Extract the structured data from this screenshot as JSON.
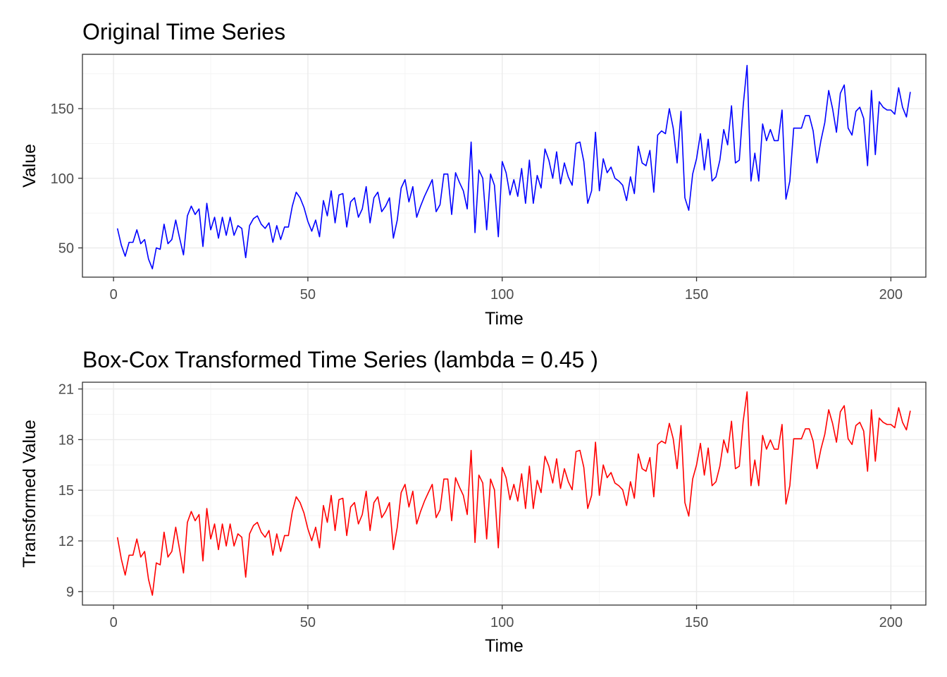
{
  "chart_data": [
    {
      "type": "line",
      "title": "Original Time Series",
      "xlabel": "Time",
      "ylabel": "Value",
      "xlim": [
        -8,
        209
      ],
      "ylim": [
        29,
        189
      ],
      "x_ticks": [
        0,
        50,
        100,
        150,
        200
      ],
      "y_ticks": [
        50,
        100,
        150
      ],
      "grid": true,
      "legend": "none",
      "color": "#0000ff",
      "series": [
        {
          "values": [
            64,
            52,
            44,
            54,
            54,
            63,
            53,
            56,
            42,
            35,
            50,
            49,
            67,
            53,
            56,
            70,
            57,
            45,
            73,
            80,
            74,
            78,
            51,
            82,
            63,
            72,
            57,
            72,
            59,
            72,
            59,
            66,
            64,
            43,
            66,
            71,
            73,
            67,
            64,
            68,
            54,
            66,
            56,
            65,
            65,
            80,
            90,
            86,
            79,
            69,
            62,
            70,
            58,
            84,
            73,
            91,
            68,
            88,
            89,
            65,
            83,
            86,
            72,
            78,
            94,
            68,
            86,
            90,
            76,
            80,
            86,
            57,
            70,
            93,
            99,
            83,
            94,
            72,
            80,
            87,
            93,
            99,
            76,
            81,
            103,
            103,
            74,
            104,
            97,
            91,
            78,
            126,
            61,
            106,
            100,
            63,
            103,
            95,
            58,
            112,
            104,
            88,
            99,
            87,
            107,
            82,
            113,
            82,
            102,
            93,
            121,
            113,
            100,
            119,
            96,
            111,
            101,
            95,
            125,
            126,
            112,
            82,
            91,
            133,
            91,
            114,
            104,
            108,
            100,
            98,
            95,
            84,
            101,
            89,
            123,
            111,
            109,
            120,
            90,
            131,
            134,
            132,
            150,
            136,
            111,
            148,
            86,
            77,
            103,
            114,
            132,
            106,
            128,
            98,
            101,
            113,
            135,
            124,
            152,
            111,
            113,
            152,
            181,
            98,
            118,
            98,
            139,
            127,
            135,
            127,
            127,
            149,
            85,
            98,
            136,
            136,
            136,
            145,
            145,
            134,
            111,
            127,
            140,
            163,
            150,
            133,
            161,
            167,
            136,
            131,
            148,
            151,
            143,
            109,
            163,
            117,
            155,
            151,
            149,
            149,
            146,
            165,
            151,
            144,
            162
          ]
        }
      ]
    },
    {
      "type": "line",
      "title": "Box-Cox Transformed Time Series (lambda = 0.45 )",
      "xlabel": "Time",
      "ylabel": "Transformed Value",
      "xlim": [
        -8,
        209
      ],
      "ylim": [
        8.2,
        21.4
      ],
      "x_ticks": [
        0,
        50,
        100,
        150,
        200
      ],
      "y_ticks": [
        9,
        12,
        15,
        18,
        21
      ],
      "grid": true,
      "legend": "none",
      "color": "#ff0000"
    }
  ]
}
